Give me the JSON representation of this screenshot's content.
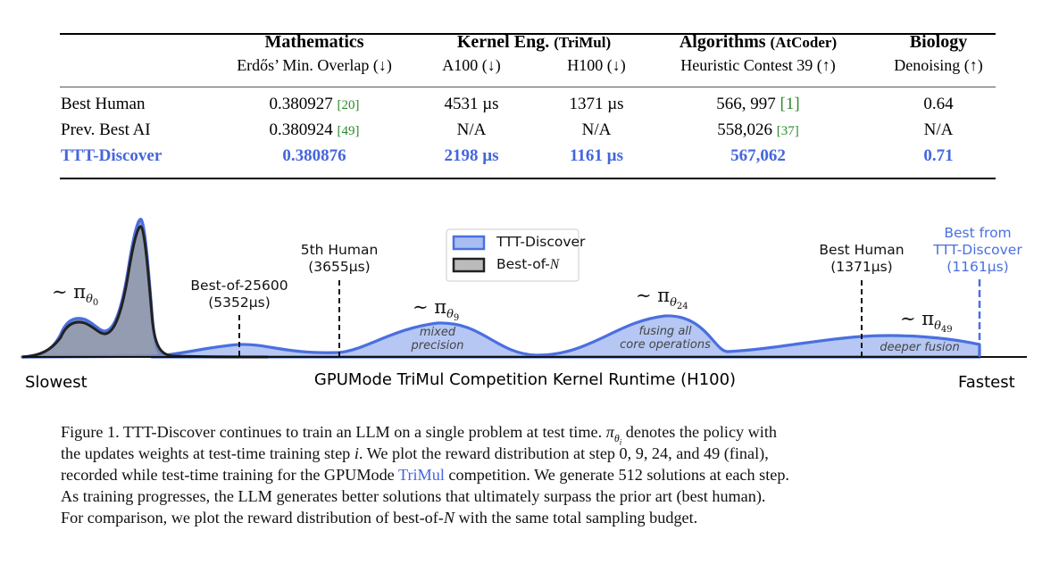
{
  "table": {
    "groups": [
      {
        "title": "Mathematics",
        "suffix": ""
      },
      {
        "title": "Kernel Eng.",
        "suffix": "(TriMul)"
      },
      {
        "title": "Algorithms",
        "suffix": "(AtCoder)"
      },
      {
        "title": "Biology",
        "suffix": ""
      }
    ],
    "columns": [
      "Erdős’ Min. Overlap (↓)",
      "A100 (↓)",
      "H100 (↓)",
      "Heuristic Contest 39 (↑)",
      "Denoising (↑)"
    ],
    "rows": [
      {
        "label": "Best Human",
        "cells": [
          {
            "value": "0.380927",
            "ref": "[20]"
          },
          {
            "value": "4531 µs",
            "ref": ""
          },
          {
            "value": "1371 µs",
            "ref": ""
          },
          {
            "value": "566, 997",
            "ref": "[1]"
          },
          {
            "value": "0.64",
            "ref": ""
          }
        ]
      },
      {
        "label": "Prev. Best AI",
        "cells": [
          {
            "value": "0.380924",
            "ref": "[49]"
          },
          {
            "value": "N/A",
            "ref": ""
          },
          {
            "value": "N/A",
            "ref": ""
          },
          {
            "value": "558,026",
            "ref": "[37]"
          },
          {
            "value": "N/A",
            "ref": ""
          }
        ]
      },
      {
        "label": "TTT-Discover",
        "cells": [
          {
            "value": "0.380876",
            "ref": ""
          },
          {
            "value": "2198 µs",
            "ref": ""
          },
          {
            "value": "1161 µs",
            "ref": ""
          },
          {
            "value": "567,062",
            "ref": ""
          },
          {
            "value": "0.71",
            "ref": ""
          }
        ]
      }
    ],
    "highlight_color": "#4466dd",
    "ref_color": "#2a8a2a"
  },
  "figure": {
    "legend": [
      {
        "label": "TTT-Discover",
        "color": "#4a6fe0"
      },
      {
        "label_prefix": "Best-of-",
        "label_var": "N",
        "color": "#333333"
      }
    ],
    "markers": [
      {
        "line1": "Best-of-25600",
        "line2": "(5352µs)"
      },
      {
        "line1": "5th Human",
        "line2": "(3655µs)"
      },
      {
        "line1": "Best Human",
        "line2": "(1371µs)"
      },
      {
        "line1": "Best from",
        "line2": "TTT-Discover",
        "line3": "(1161µs)"
      }
    ],
    "policies": [
      {
        "tilde": "∼ π",
        "theta": "θ",
        "step": "0"
      },
      {
        "tilde": "∼ π",
        "theta": "θ",
        "step": "9"
      },
      {
        "tilde": "∼ π",
        "theta": "θ",
        "step": "24"
      },
      {
        "tilde": "∼ π",
        "theta": "θ",
        "step": "49"
      }
    ],
    "notes": [
      {
        "line1": "mixed",
        "line2": "precision"
      },
      {
        "line1": "fusing all",
        "line2": "core operations"
      },
      {
        "line1": "deeper fusion"
      }
    ],
    "axis": {
      "left": "Slowest",
      "title": "GPUMode TriMul Competition Kernel Runtime (H100)",
      "right": "Fastest"
    }
  },
  "caption": {
    "l1a": "Figure 1. TTT-Discover continues to train an LLM on a single problem at test time. ",
    "l1pi": "π",
    "l1theta": "θ",
    "l1i": "i",
    "l1b": " denotes the policy with",
    "l2a": "the updates weights at test-time training step ",
    "l2i": "i",
    "l2b": ". We plot the reward distribution at step 0, 9, 24, and 49 (final),",
    "l3a": "recorded while test-time training for the GPUMode ",
    "l3link": "TriMul",
    "l3b": " competition. We generate 512 solutions at each step.",
    "l4": "As training progresses, the LLM generates better solutions that ultimately surpass the prior art (best human).",
    "l5a": "For comparison, we plot the reward distribution of best-of-",
    "l5n": "N",
    "l5b": " with the same total sampling budget."
  }
}
